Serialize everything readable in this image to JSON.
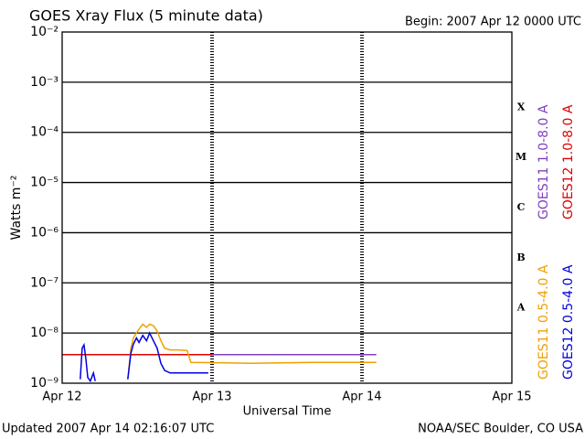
{
  "chart_data": {
    "type": "line",
    "title": "GOES Xray Flux (5 minute data)",
    "subtitle": "Begin:  2007 Apr 12 0000 UTC",
    "x_label": "Universal Time",
    "y_label": "Watts m⁻²",
    "footer_left": "Updated 2007 Apr 14 02:16:07 UTC",
    "footer_right": "NOAA/SEC Boulder, CO USA",
    "log_scale_y": true,
    "grid": true,
    "xlim": [
      0,
      72
    ],
    "xticks": [
      {
        "value": 0,
        "label": "Apr 12"
      },
      {
        "value": 24,
        "label": "Apr 13"
      },
      {
        "value": 48,
        "label": "Apr 14"
      },
      {
        "value": 72,
        "label": "Apr 15"
      }
    ],
    "ylim": [
      1e-09,
      0.01
    ],
    "yticks": [
      {
        "value": 1e-09,
        "label": "10⁻⁹"
      },
      {
        "value": 1e-08,
        "label": "10⁻⁸"
      },
      {
        "value": 1e-07,
        "label": "10⁻⁷"
      },
      {
        "value": 1e-06,
        "label": "10⁻⁶"
      },
      {
        "value": 1e-05,
        "label": "10⁻⁵"
      },
      {
        "value": 0.0001,
        "label": "10⁻⁴"
      },
      {
        "value": 0.001,
        "label": "10⁻³"
      },
      {
        "value": 0.01,
        "label": "10⁻²"
      }
    ],
    "flare_classes": [
      {
        "label": "A",
        "value": 1e-08
      },
      {
        "label": "B",
        "value": 1e-07
      },
      {
        "label": "C",
        "value": 1e-06
      },
      {
        "label": "M",
        "value": 1e-05
      },
      {
        "label": "X",
        "value": 0.0001
      }
    ],
    "series": [
      {
        "name": "GOES11 0.5-4.0 A",
        "color": "#f0a000",
        "x": [
          10.5,
          11.0,
          11.4,
          11.9,
          12.3,
          12.9,
          13.5,
          14.0,
          14.6,
          15.2,
          15.8,
          16.4,
          17.3,
          18.6,
          20.0,
          20.6,
          30,
          40,
          50.3
        ],
        "values": [
          1.2e-09,
          5e-09,
          8e-09,
          1e-08,
          1.2e-08,
          1.5e-08,
          1.3e-08,
          1.5e-08,
          1.4e-08,
          1.1e-08,
          7e-09,
          5e-09,
          4.6e-09,
          4.6e-09,
          4.5e-09,
          2.6e-09,
          2.5e-09,
          2.6e-09,
          2.6e-09
        ]
      },
      {
        "name": "GOES12 0.5-4.0 A",
        "color": "#0000e0",
        "x": [
          2.9,
          3.2,
          3.5,
          3.8,
          4.1,
          4.5,
          5.0,
          5.3,
          null,
          10.5,
          11.0,
          11.4,
          11.9,
          12.3,
          12.9,
          13.5,
          14.0,
          14.6,
          15.2,
          15.8,
          16.4,
          17.3,
          18.6,
          20.8,
          23.4
        ],
        "values": [
          1.2e-09,
          5e-09,
          5.8e-09,
          3e-09,
          1.3e-09,
          1.1e-09,
          1.6e-09,
          1.1e-09,
          null,
          1.2e-09,
          4e-09,
          6e-09,
          8e-09,
          6.5e-09,
          9e-09,
          7e-09,
          1e-08,
          7e-09,
          5e-09,
          2.5e-09,
          1.8e-09,
          1.6e-09,
          1.6e-09,
          1.6e-09,
          1.6e-09
        ]
      },
      {
        "name": "GOES11 1.0-8.0 A",
        "color": "#8040c0",
        "x": [
          0,
          50.3
        ],
        "values": [
          3.7e-09,
          3.7e-09
        ]
      },
      {
        "name": "GOES12 1.0-8.0 A",
        "color": "#e00000",
        "x": [
          0,
          24
        ],
        "values": [
          3.7e-09,
          3.7e-09
        ]
      }
    ]
  }
}
